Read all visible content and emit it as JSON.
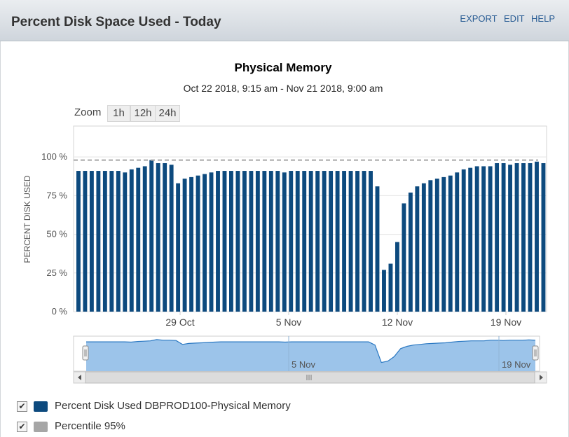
{
  "panel": {
    "title": "Percent Disk Space Used - Today",
    "actions": [
      "EXPORT",
      "EDIT",
      "HELP"
    ]
  },
  "zoom": {
    "label": "Zoom",
    "buttons": [
      "1h",
      "12h",
      "24h"
    ]
  },
  "colors": {
    "bar": "#0d4a7e",
    "percentile": "#a6a6a6",
    "navigator_fill": "#9cc4ea",
    "navigator_line": "#2a78c2"
  },
  "chart_data": {
    "type": "bar",
    "title": "Physical Memory",
    "subtitle": "Oct 22 2018, 9:15 am - Nov 21 2018, 9:00 am",
    "ylabel": "PERCENT DISK USED",
    "ylim": [
      0,
      120
    ],
    "yticks": [
      "0 %",
      "25 %",
      "50 %",
      "75 %",
      "100 %"
    ],
    "ytick_values": [
      0,
      25,
      50,
      75,
      100
    ],
    "xticks": [
      "29 Oct",
      "5 Nov",
      "12 Nov",
      "19 Nov"
    ],
    "grid": true,
    "series": [
      {
        "name": "Percent Disk Used DBPROD100-Physical Memory",
        "values": [
          91,
          91,
          91,
          91,
          91,
          91,
          91,
          90,
          92,
          93,
          94,
          98,
          96,
          96,
          95,
          83,
          86,
          87,
          88,
          89,
          90,
          91,
          91,
          91,
          91,
          91,
          91,
          91,
          91,
          91,
          91,
          90,
          91,
          91,
          91,
          91,
          91,
          91,
          91,
          91,
          91,
          91,
          91,
          91,
          91,
          81,
          27,
          31,
          45,
          70,
          77,
          81,
          83,
          85,
          86,
          87,
          88,
          90,
          92,
          93,
          94,
          94,
          94,
          96,
          96,
          95,
          96,
          96,
          96,
          97,
          96
        ]
      },
      {
        "name": "Percentile 95%",
        "value": 98
      }
    ],
    "navigator": {
      "xticks": [
        "5 Nov",
        "19 Nov"
      ]
    }
  },
  "legend": [
    {
      "label": "Percent Disk Used DBPROD100-Physical Memory",
      "checked": true
    },
    {
      "label": "Percentile 95%",
      "checked": true
    }
  ]
}
